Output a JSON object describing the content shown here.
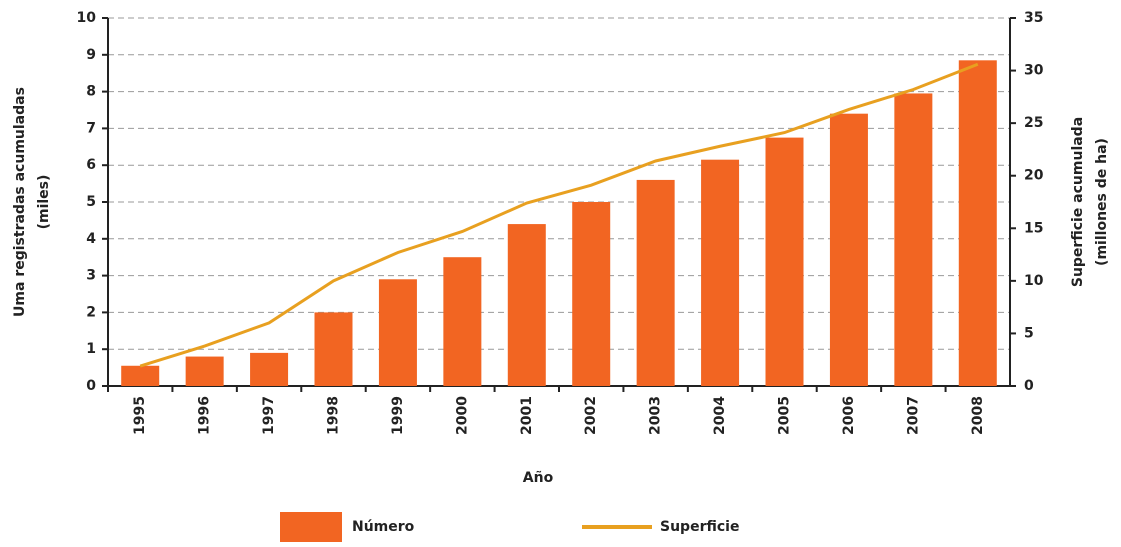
{
  "chart_data": {
    "type": "bar_line",
    "x_label": "Año",
    "y_label": [
      "Uma registradas acumuladas",
      "(miles)"
    ],
    "y2_label": [
      "Superficie acumulada",
      "(millones de ha)"
    ],
    "categories": [
      "1995",
      "1996",
      "1997",
      "1998",
      "1999",
      "2000",
      "2001",
      "2002",
      "2003",
      "2004",
      "2005",
      "2006",
      "2007",
      "2008"
    ],
    "series": [
      {
        "name": "Número",
        "type": "bar",
        "color": "#f26522",
        "values": [
          0.55,
          0.8,
          0.9,
          2.0,
          2.9,
          3.5,
          4.4,
          5.0,
          5.6,
          6.15,
          6.75,
          7.4,
          7.95,
          8.85
        ]
      },
      {
        "name": "Superficie",
        "type": "line",
        "axis": "y2",
        "color": "#e8a020",
        "values": [
          1.9,
          3.8,
          6.0,
          10.0,
          12.7,
          14.7,
          17.4,
          19.1,
          21.4,
          22.8,
          24.1,
          26.3,
          28.2,
          30.6
        ]
      }
    ],
    "ylim": [
      0,
      10
    ],
    "yticks": [
      0,
      1,
      2,
      3,
      4,
      5,
      6,
      7,
      8,
      9,
      10
    ],
    "y2lim": [
      0,
      35
    ],
    "y2ticks": [
      0,
      5,
      10,
      15,
      20,
      25,
      30,
      35
    ],
    "grid": true,
    "legend": "bottom"
  }
}
